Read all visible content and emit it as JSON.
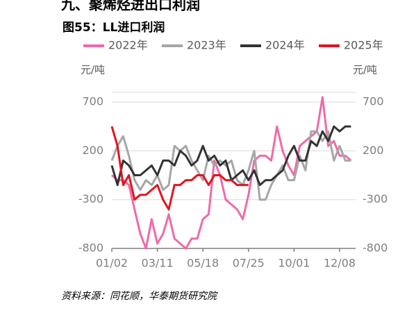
{
  "header": {
    "section": "九、聚烯烃进出口利润",
    "figure": "图55：LL进口利润"
  },
  "chart_data": {
    "type": "line",
    "y_label": "元/吨",
    "y2_label": "元/吨",
    "categories": [
      "01/02",
      null,
      null,
      null,
      null,
      null,
      null,
      null,
      "03/11",
      null,
      null,
      null,
      null,
      null,
      null,
      null,
      "05/18",
      null,
      null,
      null,
      null,
      null,
      null,
      null,
      "07/25",
      null,
      null,
      null,
      null,
      null,
      null,
      null,
      "10/01",
      null,
      null,
      null,
      null,
      null,
      null,
      null,
      "12/08",
      null,
      null
    ],
    "ylim": [
      -800,
      800
    ],
    "yticks": [
      -800,
      -300,
      200,
      700
    ],
    "y2lim": [
      -800,
      800
    ],
    "y2ticks": [
      -800,
      -300,
      200,
      700
    ],
    "grid": true,
    "legend": "top",
    "series": [
      {
        "name": "2022年",
        "color": "#f06aa8",
        "values": [
          -50,
          -100,
          -100,
          -150,
          -400,
          -650,
          -800,
          -500,
          -750,
          -650,
          -450,
          -700,
          -750,
          -800,
          -700,
          -700,
          -500,
          -450,
          100,
          -50,
          -300,
          -350,
          -400,
          -500,
          -250,
          100,
          150,
          150,
          100,
          450,
          200,
          50,
          -50,
          250,
          300,
          350,
          400,
          750,
          250,
          300,
          150,
          150,
          100
        ]
      },
      {
        "name": "2023年",
        "color": "#a6a6a6",
        "values": [
          100,
          250,
          350,
          150,
          -100,
          -200,
          -100,
          -150,
          -50,
          -200,
          -150,
          250,
          200,
          250,
          100,
          0,
          -100,
          150,
          50,
          100,
          50,
          100,
          -100,
          -150,
          0,
          200,
          -300,
          -300,
          -150,
          -50,
          50,
          -100,
          -100,
          150,
          0,
          400,
          400,
          300,
          400,
          100,
          250,
          100,
          100
        ]
      },
      {
        "name": "2024年",
        "color": "#333333",
        "values": [
          50,
          -150,
          100,
          50,
          -50,
          -50,
          0,
          50,
          -50,
          100,
          100,
          50,
          200,
          150,
          50,
          100,
          250,
          100,
          150,
          50,
          100,
          -100,
          -50,
          0,
          -100,
          0,
          -150,
          -100,
          -100,
          -50,
          0,
          150,
          250,
          100,
          100,
          300,
          250,
          400,
          300,
          450,
          400,
          450,
          450
        ]
      },
      {
        "name": "2025年",
        "color": "#e0141e",
        "values": [
          450,
          250,
          -150,
          -50,
          -300,
          -250,
          -250,
          -200,
          -150,
          -300,
          -400,
          -150,
          -150,
          -100,
          -100,
          -50,
          -50,
          -150,
          -50,
          -50,
          -100,
          -100,
          -150,
          -150,
          -150,
          null,
          null,
          null,
          null,
          null,
          null,
          null,
          null,
          null,
          null,
          null,
          null,
          null,
          null,
          null,
          null,
          null,
          null
        ]
      }
    ]
  },
  "footer": {
    "source": "资料来源：同花顺，华泰期货研究院"
  }
}
